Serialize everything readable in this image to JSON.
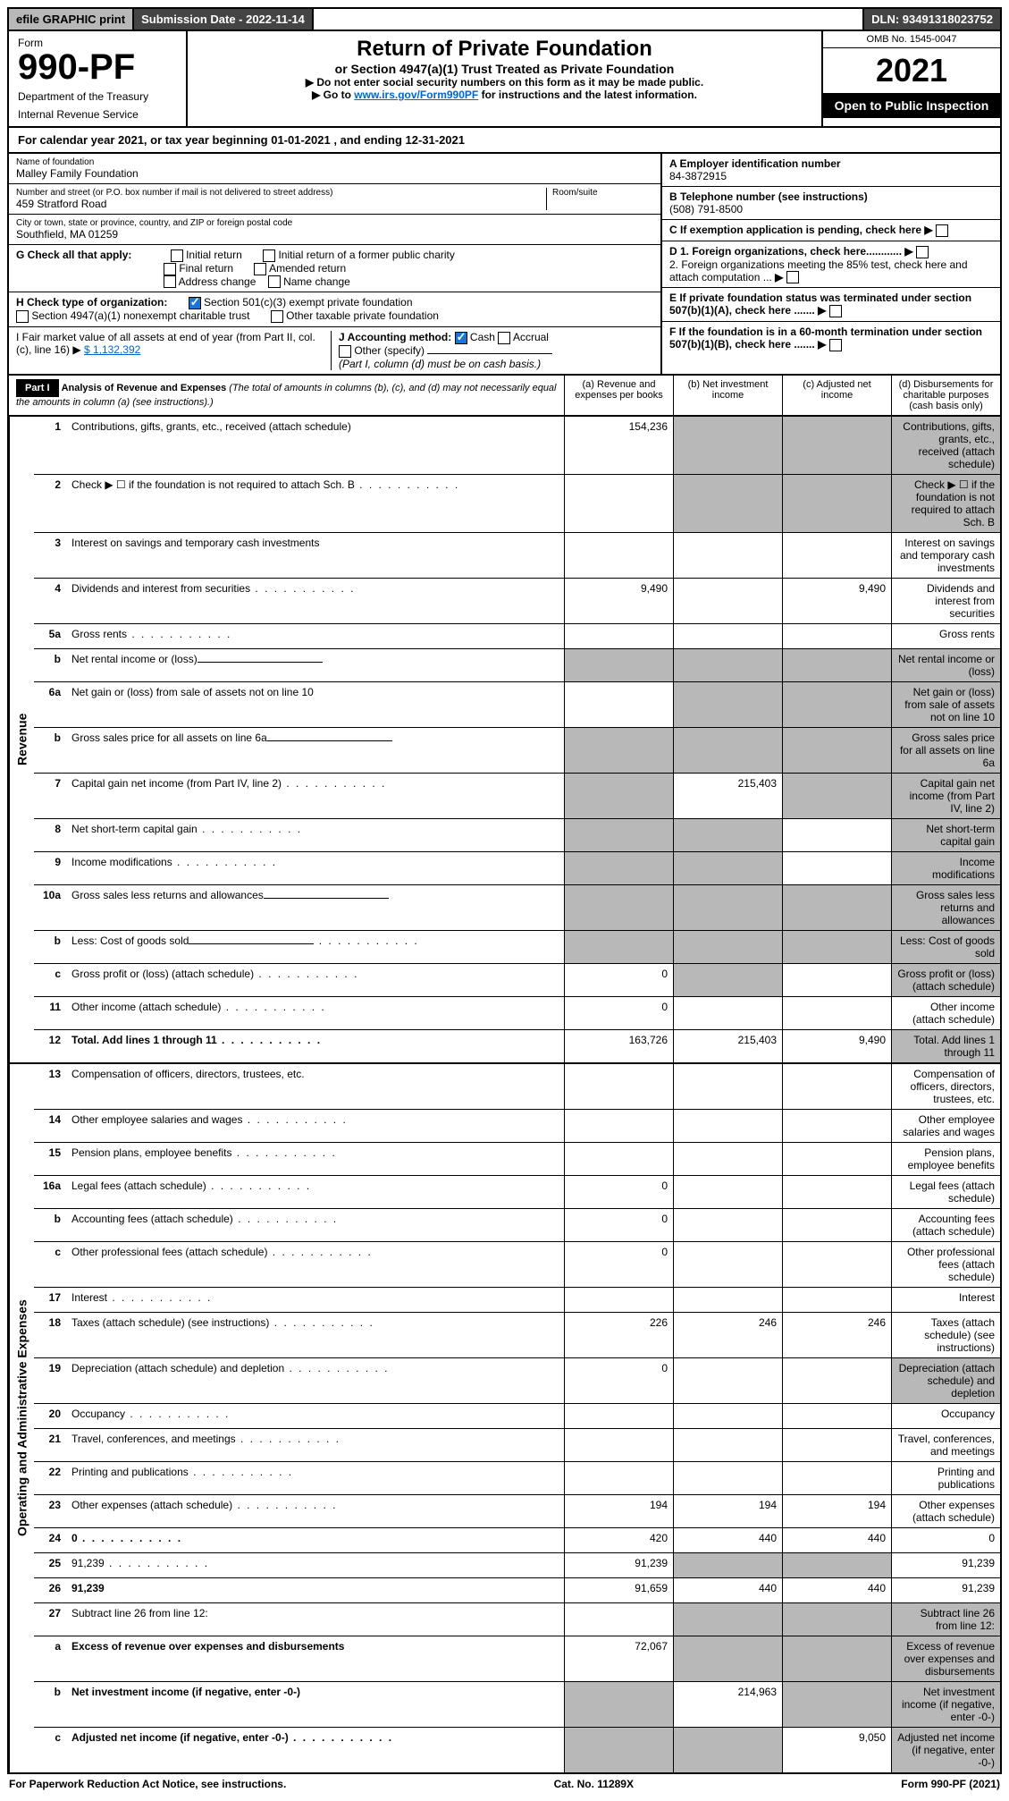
{
  "topbar": {
    "efile": "efile GRAPHIC print",
    "submission": "Submission Date - 2022-11-14",
    "dln": "DLN: 93491318023752"
  },
  "header": {
    "form_label": "Form",
    "form_number": "990-PF",
    "dept1": "Department of the Treasury",
    "dept2": "Internal Revenue Service",
    "title": "Return of Private Foundation",
    "subtitle": "or Section 4947(a)(1) Trust Treated as Private Foundation",
    "instr1": "▶ Do not enter social security numbers on this form as it may be made public.",
    "instr2_pre": "▶ Go to ",
    "instr2_link": "www.irs.gov/Form990PF",
    "instr2_post": " for instructions and the latest information.",
    "omb": "OMB No. 1545-0047",
    "year": "2021",
    "open": "Open to Public Inspection"
  },
  "calyear": "For calendar year 2021, or tax year beginning 01-01-2021               , and ending 12-31-2021",
  "info": {
    "name_label": "Name of foundation",
    "name": "Malley Family Foundation",
    "addr_label": "Number and street (or P.O. box number if mail is not delivered to street address)",
    "addr": "459 Stratford Road",
    "room_label": "Room/suite",
    "city_label": "City or town, state or province, country, and ZIP or foreign postal code",
    "city": "Southfield, MA  01259",
    "a_label": "A Employer identification number",
    "a_val": "84-3872915",
    "b_label": "B Telephone number (see instructions)",
    "b_val": "(508) 791-8500",
    "c_label": "C If exemption application is pending, check here",
    "d1_label": "D 1. Foreign organizations, check here............",
    "d2_label": "2. Foreign organizations meeting the 85% test, check here and attach computation ...",
    "e_label": "E If private foundation status was terminated under section 507(b)(1)(A), check here .......",
    "f_label": "F If the foundation is in a 60-month termination under section 507(b)(1)(B), check here .......",
    "g_label": "G Check all that apply:",
    "g_opts": [
      "Initial return",
      "Initial return of a former public charity",
      "Final return",
      "Amended return",
      "Address change",
      "Name change"
    ],
    "h_label": "H Check type of organization:",
    "h_opt1": "Section 501(c)(3) exempt private foundation",
    "h_opt2": "Section 4947(a)(1) nonexempt charitable trust",
    "h_opt3": "Other taxable private foundation",
    "i_label": "I Fair market value of all assets at end of year (from Part II, col. (c), line 16) ▶",
    "i_val": "$  1,132,392",
    "j_label": "J Accounting method:",
    "j_cash": "Cash",
    "j_accrual": "Accrual",
    "j_other": "Other (specify)",
    "j_note": "(Part I, column (d) must be on cash basis.)"
  },
  "part1": {
    "label": "Part I",
    "title": "Analysis of Revenue and Expenses",
    "title_note": "(The total of amounts in columns (b), (c), and (d) may not necessarily equal the amounts in column (a) (see instructions).)",
    "col_a": "(a) Revenue and expenses per books",
    "col_b": "(b) Net investment income",
    "col_c": "(c) Adjusted net income",
    "col_d": "(d) Disbursements for charitable purposes (cash basis only)"
  },
  "side_labels": {
    "revenue": "Revenue",
    "expenses": "Operating and Administrative Expenses"
  },
  "rows": [
    {
      "n": "1",
      "d": "Contributions, gifts, grants, etc., received (attach schedule)",
      "a": "154,236",
      "b_g": true,
      "c_g": true,
      "d_g": true
    },
    {
      "n": "2",
      "d": "Check ▶ ☐ if the foundation is not required to attach Sch. B",
      "b_g": true,
      "c_g": true,
      "d_g": true,
      "dots": true
    },
    {
      "n": "3",
      "d": "Interest on savings and temporary cash investments"
    },
    {
      "n": "4",
      "d": "Dividends and interest from securities",
      "a": "9,490",
      "c": "9,490",
      "dots": true
    },
    {
      "n": "5a",
      "d": "Gross rents",
      "dots": true
    },
    {
      "n": "b",
      "d": "Net rental income or (loss)",
      "a_g": true,
      "b_g": true,
      "c_g": true,
      "d_g": true,
      "underline": true
    },
    {
      "n": "6a",
      "d": "Net gain or (loss) from sale of assets not on line 10",
      "b_g": true,
      "c_g": true,
      "d_g": true
    },
    {
      "n": "b",
      "d": "Gross sales price for all assets on line 6a",
      "a_g": true,
      "b_g": true,
      "c_g": true,
      "d_g": true,
      "underline": true
    },
    {
      "n": "7",
      "d": "Capital gain net income (from Part IV, line 2)",
      "a_g": true,
      "b": "215,403",
      "c_g": true,
      "d_g": true,
      "dots": true
    },
    {
      "n": "8",
      "d": "Net short-term capital gain",
      "a_g": true,
      "b_g": true,
      "d_g": true,
      "dots": true
    },
    {
      "n": "9",
      "d": "Income modifications",
      "a_g": true,
      "b_g": true,
      "d_g": true,
      "dots": true
    },
    {
      "n": "10a",
      "d": "Gross sales less returns and allowances",
      "a_g": true,
      "b_g": true,
      "c_g": true,
      "d_g": true,
      "underline": true
    },
    {
      "n": "b",
      "d": "Less: Cost of goods sold",
      "a_g": true,
      "b_g": true,
      "c_g": true,
      "d_g": true,
      "dots": true,
      "underline": true
    },
    {
      "n": "c",
      "d": "Gross profit or (loss) (attach schedule)",
      "a": "0",
      "b_g": true,
      "d_g": true,
      "dots": true
    },
    {
      "n": "11",
      "d": "Other income (attach schedule)",
      "a": "0",
      "dots": true
    },
    {
      "n": "12",
      "d": "Total. Add lines 1 through 11",
      "bold": true,
      "a": "163,726",
      "b": "215,403",
      "c": "9,490",
      "d_g": true,
      "dots": true
    }
  ],
  "exp_rows": [
    {
      "n": "13",
      "d": "Compensation of officers, directors, trustees, etc."
    },
    {
      "n": "14",
      "d": "Other employee salaries and wages",
      "dots": true
    },
    {
      "n": "15",
      "d": "Pension plans, employee benefits",
      "dots": true
    },
    {
      "n": "16a",
      "d": "Legal fees (attach schedule)",
      "a": "0",
      "dots": true
    },
    {
      "n": "b",
      "d": "Accounting fees (attach schedule)",
      "a": "0",
      "dots": true
    },
    {
      "n": "c",
      "d": "Other professional fees (attach schedule)",
      "a": "0",
      "dots": true
    },
    {
      "n": "17",
      "d": "Interest",
      "dots": true
    },
    {
      "n": "18",
      "d": "Taxes (attach schedule) (see instructions)",
      "a": "226",
      "b": "246",
      "c": "246",
      "dots": true
    },
    {
      "n": "19",
      "d": "Depreciation (attach schedule) and depletion",
      "a": "0",
      "d_g": true,
      "dots": true
    },
    {
      "n": "20",
      "d": "Occupancy",
      "dots": true
    },
    {
      "n": "21",
      "d": "Travel, conferences, and meetings",
      "dots": true
    },
    {
      "n": "22",
      "d": "Printing and publications",
      "dots": true
    },
    {
      "n": "23",
      "d": "Other expenses (attach schedule)",
      "a": "194",
      "b": "194",
      "c": "194",
      "dots": true
    },
    {
      "n": "24",
      "d": "0",
      "bold": true,
      "a": "420",
      "b": "440",
      "c": "440",
      "dots": true
    },
    {
      "n": "25",
      "d": "91,239",
      "a": "91,239",
      "b_g": true,
      "c_g": true,
      "dots": true
    },
    {
      "n": "26",
      "d": "91,239",
      "bold": true,
      "a": "91,659",
      "b": "440",
      "c": "440"
    },
    {
      "n": "27",
      "d": "Subtract line 26 from line 12:",
      "b_g": true,
      "c_g": true,
      "d_g": true
    },
    {
      "n": "a",
      "d": "Excess of revenue over expenses and disbursements",
      "bold": true,
      "a": "72,067",
      "b_g": true,
      "c_g": true,
      "d_g": true
    },
    {
      "n": "b",
      "d": "Net investment income (if negative, enter -0-)",
      "bold": true,
      "a_g": true,
      "b": "214,963",
      "c_g": true,
      "d_g": true
    },
    {
      "n": "c",
      "d": "Adjusted net income (if negative, enter -0-)",
      "bold": true,
      "a_g": true,
      "b_g": true,
      "c": "9,050",
      "d_g": true,
      "dots": true
    }
  ],
  "footer": {
    "left": "For Paperwork Reduction Act Notice, see instructions.",
    "center": "Cat. No. 11289X",
    "right": "Form 990-PF (2021)"
  }
}
